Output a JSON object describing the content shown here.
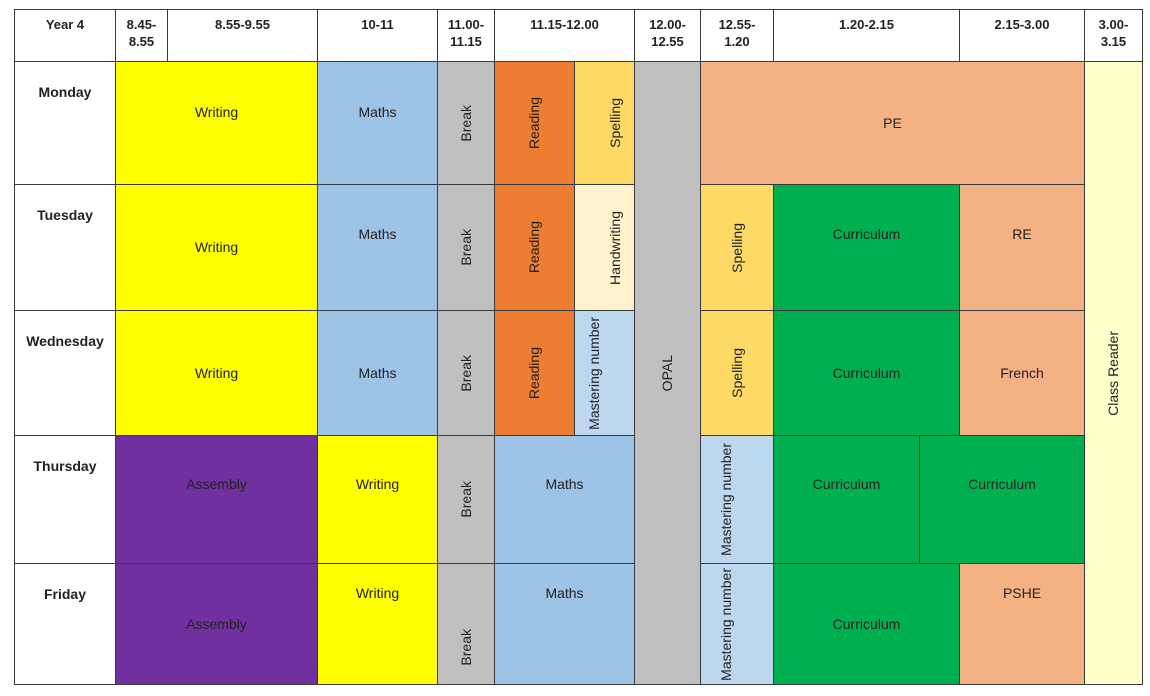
{
  "header": {
    "corner": "Year 4",
    "slots": [
      "8.45-\n8.55",
      "8.55-9.55",
      "10-11",
      "11.00-\n11.15",
      "11.15-12.00",
      "12.00-\n12.55",
      "12.55-\n1.20",
      "1.20-2.15",
      "2.15-3.00",
      "3.00-\n3.15"
    ]
  },
  "days": [
    "Monday",
    "Tuesday",
    "Wednesday",
    "Thursday",
    "Friday"
  ],
  "lessons": {
    "writing": "Writing",
    "maths": "Maths",
    "break": "Break",
    "reading": "Reading",
    "spelling": "Spelling",
    "handwriting": "Handwriting",
    "mastering": "Mastering number",
    "opal": "OPAL",
    "pe": "PE",
    "curriculum": "Curriculum",
    "re": "RE",
    "french": "French",
    "assembly": "Assembly",
    "pshe": "PSHE",
    "class_reader": "Class Reader"
  },
  "colors": {
    "writing": "#ffff00",
    "maths": "#9dc3e6",
    "break": "#c0c0c0",
    "reading": "#ed7d31",
    "spelling": "#ffd966",
    "handwriting": "#fff2cc",
    "mastering": "#bdd7ee",
    "opal": "#c0c0c0",
    "pe": "#f4b183",
    "curriculum": "#00b050",
    "assembly": "#7030a0",
    "class_reader": "#ffffcc"
  }
}
